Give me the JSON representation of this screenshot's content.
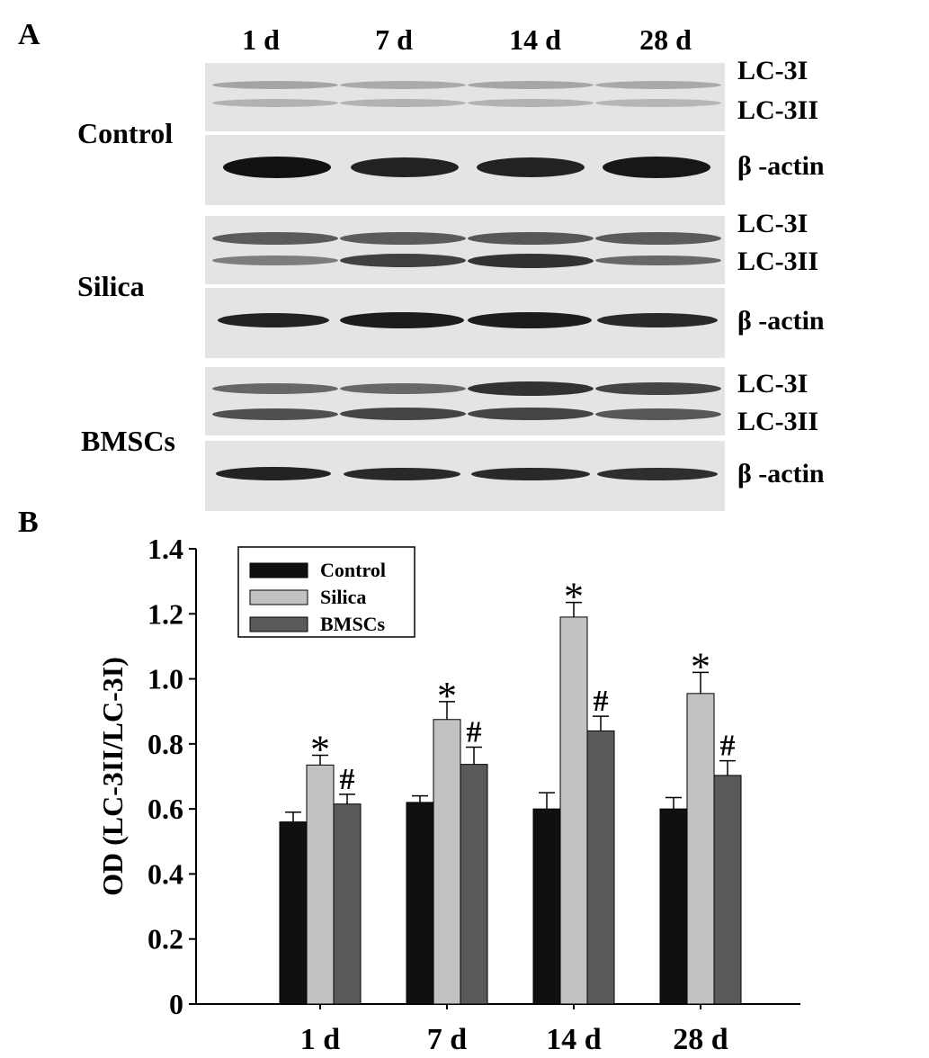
{
  "panel_a": {
    "letter": "A",
    "lanes": [
      "1 d",
      "7 d",
      "14 d",
      "28 d"
    ],
    "groups": [
      {
        "name": "Control",
        "lc3_labels": [
          "LC-3I",
          "LC-3II"
        ],
        "actin_label": "β -actin"
      },
      {
        "name": "Silica",
        "lc3_labels": [
          "LC-3I",
          "LC-3II"
        ],
        "actin_label": "β -actin"
      },
      {
        "name": "BMSCs",
        "lc3_labels": [
          "LC-3I",
          "LC-3II"
        ],
        "actin_label": "β -actin"
      }
    ]
  },
  "panel_b": {
    "letter": "B"
  },
  "chart_data": {
    "type": "bar",
    "categories": [
      "1 d",
      "7 d",
      "14 d",
      "28 d"
    ],
    "series": [
      {
        "name": "Control",
        "values": [
          0.56,
          0.62,
          0.6,
          0.6
        ],
        "errors": [
          0.03,
          0.02,
          0.05,
          0.035
        ],
        "color": "#101010",
        "marks": [
          "",
          "",
          "",
          ""
        ]
      },
      {
        "name": "Silica",
        "values": [
          0.735,
          0.875,
          1.19,
          0.955
        ],
        "errors": [
          0.03,
          0.055,
          0.045,
          0.065
        ],
        "color": "#c2c2c2",
        "marks": [
          "*",
          "*",
          "*",
          "*"
        ]
      },
      {
        "name": "BMSCs",
        "values": [
          0.615,
          0.737,
          0.84,
          0.703
        ],
        "errors": [
          0.03,
          0.053,
          0.045,
          0.045
        ],
        "color": "#5a5a5a",
        "marks": [
          "#",
          "#",
          "#",
          "#"
        ]
      }
    ],
    "title": "",
    "xlabel": "",
    "ylabel": "OD (LC-3II/LC-3I)",
    "ylim": [
      0,
      1.4
    ],
    "yticks": [
      0,
      0.2,
      0.4,
      0.6,
      0.8,
      1.0,
      1.2,
      1.4
    ],
    "ytick_labels": [
      "0",
      "0.2",
      "0.4",
      "0.6",
      "0.8",
      "1.0",
      "1.2",
      "1.4"
    ],
    "legend_position": "top-left",
    "grid": false
  }
}
